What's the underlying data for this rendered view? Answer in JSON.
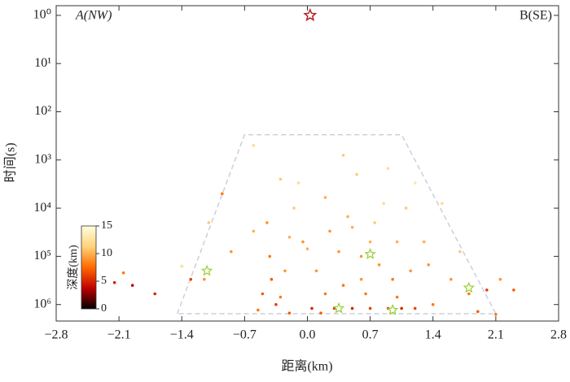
{
  "chart_data": {
    "type": "scatter",
    "xlabel": "距离(km)",
    "ylabel": "时间(s)",
    "annotations": [
      "A(NW)",
      "B(SE)"
    ],
    "xlim": [
      -2.8,
      2.8
    ],
    "xticks": [
      {
        "value": -2.8,
        "label": "−2.8"
      },
      {
        "value": -2.1,
        "label": "−2.1"
      },
      {
        "value": -1.4,
        "label": "−1.4"
      },
      {
        "value": -0.7,
        "label": "−0.7"
      },
      {
        "value": 0,
        "label": "0.0"
      },
      0.7,
      1.4,
      2.1,
      2.8
    ],
    "ylim": [
      0.63,
      2200000
    ],
    "ylog": true,
    "yinverted": true,
    "yticks": [
      {
        "value": 1,
        "label": "10⁰"
      },
      {
        "value": 10,
        "label": "10¹"
      },
      {
        "value": 100,
        "label": "10²"
      },
      {
        "value": 1000,
        "label": "10³"
      },
      {
        "value": 10000,
        "label": "10⁴"
      },
      {
        "value": 100000,
        "label": "10⁵"
      },
      {
        "value": 1000000,
        "label": "10⁶"
      }
    ],
    "x": [
      -2.05,
      -2.15,
      -1.95,
      -1.7,
      -1.4,
      -1.1,
      -1.15,
      -0.95,
      -0.85,
      -0.6,
      -0.45,
      -0.42,
      -0.4,
      -0.35,
      -0.3,
      -0.5,
      -0.55,
      -0.25,
      -0.2,
      -0.15,
      -0.1,
      -0.05,
      0,
      0.05,
      0.1,
      0.15,
      0.2,
      0.25,
      0.3,
      0.35,
      0.4,
      0.45,
      0.5,
      0.55,
      0.6,
      0.65,
      0.7,
      0.7,
      0.75,
      0.8,
      0.85,
      0.9,
      0.95,
      1.0,
      1.05,
      1.1,
      1.15,
      1.2,
      1.3,
      1.35,
      1.4,
      1.5,
      1.6,
      1.7,
      1.8,
      1.9,
      2.0,
      2.1,
      2.3,
      2.15,
      1.2,
      -0.6,
      0.4,
      0.9,
      -0.3,
      -1.3,
      0.2,
      0.6,
      1.0,
      -0.2,
      0.5
    ],
    "y": [
      220000,
      350000,
      400000,
      600000,
      160000,
      20000,
      300000,
      5000,
      80000,
      30000,
      20000,
      100000,
      300000,
      1000000,
      700000,
      600000,
      1300000,
      200000,
      40000,
      10000,
      3000,
      50000,
      70000,
      1200000,
      200000,
      1500000,
      6000,
      30000,
      1200000,
      80000,
      400000,
      15000,
      1200000,
      2000,
      100000,
      600000,
      1200000,
      50000,
      20000,
      150000,
      8000,
      1200000,
      300000,
      50000,
      1200000,
      10000,
      200000,
      1200000,
      50000,
      150000,
      1000000,
      8000,
      300000,
      80000,
      600000,
      1400000,
      500000,
      1600000,
      500000,
      300000,
      3000,
      500,
      800,
      1500,
      2500,
      300000,
      600000,
      300000,
      700000,
      1500000,
      25000
    ],
    "depth": [
      8,
      5,
      4,
      5,
      12,
      11,
      9,
      8,
      9,
      10,
      9,
      8,
      7,
      6,
      8,
      7,
      8,
      9,
      10,
      11,
      12,
      9,
      10,
      5,
      9,
      7,
      10,
      9,
      6,
      9,
      8,
      10,
      5,
      11,
      9,
      8,
      6,
      10,
      11,
      9,
      12,
      6,
      8,
      10,
      5,
      11,
      9,
      6,
      10,
      9,
      8,
      12,
      9,
      11,
      8,
      7,
      6,
      8,
      7,
      9,
      13,
      12,
      11,
      12,
      11,
      6,
      8,
      9,
      8,
      7,
      10
    ],
    "mainshock": {
      "x": 0.03,
      "y": 1,
      "color": "#b22222"
    },
    "stars": {
      "x": [
        -1.12,
        1.8,
        0.7,
        0.95,
        0.35
      ],
      "y": [
        200000,
        450000,
        90000,
        1300000,
        1200000
      ],
      "color": "#9acd32"
    },
    "region": {
      "x": [
        -1.45,
        -0.7,
        1.05,
        2.1
      ],
      "y": [
        1550000,
        300,
        300,
        1550000
      ],
      "color": "#c8d0dc"
    },
    "colorbar": {
      "label": "深度(km)",
      "lim": [
        0,
        15
      ],
      "ticks": [
        0,
        5,
        10,
        15
      ],
      "colors": [
        "#000000",
        "#c00000",
        "#ff6a00",
        "#ffd27a",
        "#ffffe0"
      ]
    }
  }
}
